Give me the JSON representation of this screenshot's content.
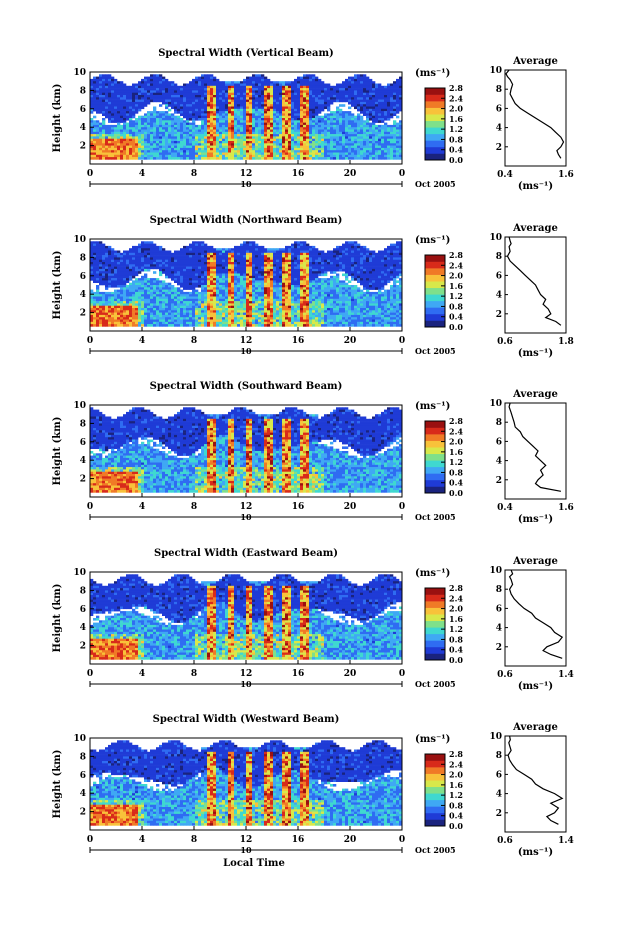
{
  "chart_data": [
    {
      "type": "heatmap",
      "title": "Spectral Width (Vertical Beam)",
      "ylabel": "Height (km)",
      "xlim": [
        0,
        24
      ],
      "ylim": [
        0,
        10
      ],
      "x_ticks": [
        "0",
        "4",
        "8",
        "12",
        "16",
        "20",
        "0"
      ],
      "y_ticks": [
        "2",
        "4",
        "6",
        "8",
        "10"
      ],
      "date_marker": "10",
      "date_label": "Oct 2005",
      "colorbar": {
        "unit": "(ms⁻¹)",
        "ticks": [
          "2.8",
          "2.4",
          "2.0",
          "1.6",
          "1.2",
          "0.8",
          "0.4",
          "0.0"
        ]
      },
      "profile": {
        "title": "Average",
        "xlabel": "(ms⁻¹)",
        "xlim": [
          0.4,
          1.6
        ],
        "x_ticks": [
          "0.4",
          "1.6"
        ],
        "y_ticks": [
          "2",
          "4",
          "6",
          "8",
          "10"
        ],
        "x": [
          1.5,
          1.45,
          1.42,
          1.5,
          1.55,
          1.5,
          1.4,
          1.3,
          1.15,
          1.0,
          0.85,
          0.7,
          0.6,
          0.55,
          0.5,
          0.52,
          0.55,
          0.5,
          0.45,
          0.42,
          0.48
        ],
        "y": [
          0.8,
          1.2,
          1.6,
          2.0,
          2.5,
          3.0,
          3.5,
          4.0,
          4.5,
          5.0,
          5.5,
          6.0,
          6.5,
          7.0,
          7.5,
          8.0,
          8.5,
          9.0,
          9.3,
          9.6,
          10.0
        ]
      }
    },
    {
      "type": "heatmap",
      "title": "Spectral Width (Northward Beam)",
      "ylabel": "Height (km)",
      "xlim": [
        0,
        24
      ],
      "ylim": [
        0,
        10
      ],
      "x_ticks": [
        "0",
        "4",
        "8",
        "12",
        "16",
        "20",
        "0"
      ],
      "y_ticks": [
        "2",
        "4",
        "6",
        "8",
        "10"
      ],
      "date_marker": "10",
      "date_label": "Oct 2005",
      "colorbar": {
        "unit": "(ms⁻¹)",
        "ticks": [
          "2.8",
          "2.4",
          "2.0",
          "1.6",
          "1.2",
          "0.8",
          "0.4",
          "0.0"
        ]
      },
      "profile": {
        "title": "Average",
        "xlabel": "(ms⁻¹)",
        "xlim": [
          0.6,
          1.8
        ],
        "x_ticks": [
          "0.6",
          "1.8"
        ],
        "y_ticks": [
          "2",
          "4",
          "6",
          "8",
          "10"
        ],
        "x": [
          1.7,
          1.6,
          1.4,
          1.5,
          1.45,
          1.35,
          1.4,
          1.3,
          1.25,
          1.2,
          1.1,
          1.0,
          0.9,
          0.8,
          0.7,
          0.65,
          0.7,
          0.68,
          0.72,
          0.7,
          0.68
        ],
        "y": [
          0.8,
          1.2,
          1.6,
          2.0,
          2.5,
          3.0,
          3.5,
          4.0,
          4.5,
          5.0,
          5.5,
          6.0,
          6.5,
          7.0,
          7.5,
          8.0,
          8.5,
          9.0,
          9.3,
          9.6,
          10.0
        ]
      }
    },
    {
      "type": "heatmap",
      "title": "Spectral Width (Southward Beam)",
      "ylabel": "Height (km)",
      "xlim": [
        0,
        24
      ],
      "ylim": [
        0,
        10
      ],
      "x_ticks": [
        "0",
        "4",
        "8",
        "12",
        "16",
        "20",
        "0"
      ],
      "y_ticks": [
        "2",
        "4",
        "6",
        "8",
        "10"
      ],
      "date_marker": "10",
      "date_label": "Oct 2005",
      "colorbar": {
        "unit": "(ms⁻¹)",
        "ticks": [
          "2.8",
          "2.4",
          "2.0",
          "1.6",
          "1.2",
          "0.8",
          "0.4",
          "0.0"
        ]
      },
      "profile": {
        "title": "Average",
        "xlabel": "(ms⁻¹)",
        "xlim": [
          0.4,
          1.6
        ],
        "x_ticks": [
          "0.4",
          "1.6"
        ],
        "y_ticks": [
          "2",
          "4",
          "6",
          "8",
          "10"
        ],
        "x": [
          1.5,
          1.1,
          1.0,
          1.05,
          1.15,
          1.1,
          1.2,
          1.1,
          1.0,
          1.05,
          0.95,
          0.85,
          0.75,
          0.7,
          0.6,
          0.58,
          0.55,
          0.52,
          0.5,
          0.48,
          0.5
        ],
        "y": [
          0.8,
          1.2,
          1.6,
          2.0,
          2.5,
          3.0,
          3.5,
          4.0,
          4.5,
          5.0,
          5.5,
          6.0,
          6.5,
          7.0,
          7.5,
          8.0,
          8.5,
          9.0,
          9.3,
          9.6,
          10.0
        ]
      }
    },
    {
      "type": "heatmap",
      "title": "Spectral Width (Eastward Beam)",
      "ylabel": "Height (km)",
      "xlim": [
        0,
        24
      ],
      "ylim": [
        0,
        10
      ],
      "x_ticks": [
        "0",
        "4",
        "8",
        "12",
        "16",
        "20",
        "0"
      ],
      "y_ticks": [
        "2",
        "4",
        "6",
        "8",
        "10"
      ],
      "date_marker": "10",
      "date_label": "Oct 2005",
      "colorbar": {
        "unit": "(ms⁻¹)",
        "ticks": [
          "2.8",
          "2.4",
          "2.0",
          "1.6",
          "1.2",
          "0.8",
          "0.4",
          "0.0"
        ]
      },
      "profile": {
        "title": "Average",
        "xlabel": "(ms⁻¹)",
        "xlim": [
          0.6,
          1.4
        ],
        "x_ticks": [
          "0.6",
          "1.4"
        ],
        "y_ticks": [
          "2",
          "4",
          "6",
          "8",
          "10"
        ],
        "x": [
          1.35,
          1.2,
          1.1,
          1.15,
          1.3,
          1.35,
          1.25,
          1.2,
          1.1,
          1.0,
          0.95,
          0.85,
          0.78,
          0.72,
          0.68,
          0.66,
          0.7,
          0.68,
          0.66,
          0.7,
          0.68
        ],
        "y": [
          0.8,
          1.2,
          1.6,
          2.0,
          2.5,
          3.0,
          3.5,
          4.0,
          4.5,
          5.0,
          5.5,
          6.0,
          6.5,
          7.0,
          7.5,
          8.0,
          8.5,
          9.0,
          9.3,
          9.6,
          10.0
        ]
      }
    },
    {
      "type": "heatmap",
      "title": "Spectral Width (Westward Beam)",
      "ylabel": "Height (km)",
      "xlim": [
        0,
        24
      ],
      "ylim": [
        0,
        10
      ],
      "x_ticks": [
        "0",
        "4",
        "8",
        "12",
        "16",
        "20",
        "0"
      ],
      "y_ticks": [
        "2",
        "4",
        "6",
        "8",
        "10"
      ],
      "date_marker": "10",
      "date_label": "Oct 2005",
      "xlabel": "Local Time",
      "colorbar": {
        "unit": "(ms⁻¹)",
        "ticks": [
          "2.8",
          "2.4",
          "2.0",
          "1.6",
          "1.2",
          "0.8",
          "0.4",
          "0.0"
        ]
      },
      "profile": {
        "title": "Average",
        "xlabel": "(ms⁻¹)",
        "xlim": [
          0.6,
          1.4
        ],
        "x_ticks": [
          "0.6",
          "1.4"
        ],
        "y_ticks": [
          "2",
          "4",
          "6",
          "8",
          "10"
        ],
        "x": [
          1.3,
          1.2,
          1.15,
          1.25,
          1.3,
          1.2,
          1.35,
          1.25,
          1.1,
          1.0,
          0.95,
          0.85,
          0.75,
          0.7,
          0.66,
          0.64,
          0.68,
          0.66,
          0.65,
          0.67,
          0.66
        ],
        "y": [
          0.8,
          1.2,
          1.6,
          2.0,
          2.5,
          3.0,
          3.5,
          4.0,
          4.5,
          5.0,
          5.5,
          6.0,
          6.5,
          7.0,
          7.5,
          8.0,
          8.5,
          9.0,
          9.3,
          9.6,
          10.0
        ]
      }
    }
  ],
  "colors": {
    "cmap": [
      "#1a237e",
      "#1f3bd6",
      "#2f6cf2",
      "#3fa8f4",
      "#3fd8d0",
      "#7fe08a",
      "#d8e84a",
      "#f8c23a",
      "#f07a26",
      "#d82a1a",
      "#9a1010"
    ]
  }
}
